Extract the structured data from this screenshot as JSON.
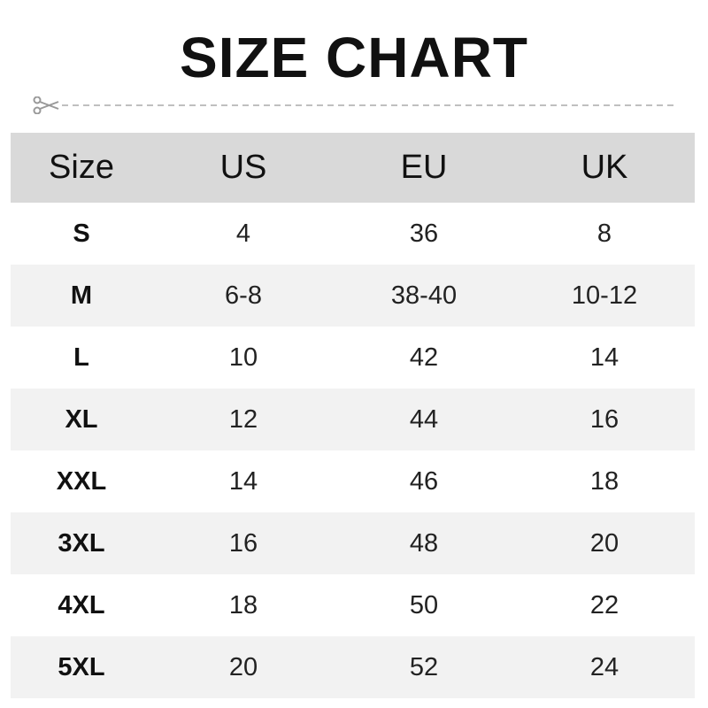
{
  "title": "SIZE CHART",
  "icons": {
    "cut_line": "scissors-icon"
  },
  "colors": {
    "header_bg": "#d9d9d9",
    "alt_row_bg": "#f2f2f2"
  },
  "table": {
    "headers": [
      "Size",
      "US",
      "EU",
      "UK"
    ],
    "rows": [
      [
        "S",
        "4",
        "36",
        "8"
      ],
      [
        "M",
        "6-8",
        "38-40",
        "10-12"
      ],
      [
        "L",
        "10",
        "42",
        "14"
      ],
      [
        "XL",
        "12",
        "44",
        "16"
      ],
      [
        "XXL",
        "14",
        "46",
        "18"
      ],
      [
        "3XL",
        "16",
        "48",
        "20"
      ],
      [
        "4XL",
        "18",
        "50",
        "22"
      ],
      [
        "5XL",
        "20",
        "52",
        "24"
      ]
    ]
  }
}
